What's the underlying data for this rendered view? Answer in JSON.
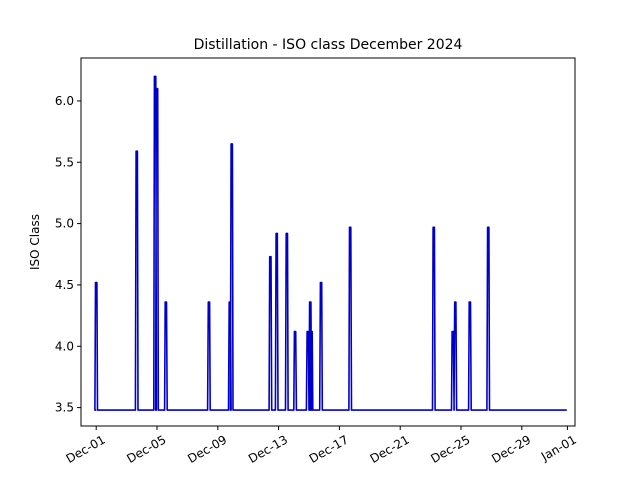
{
  "chart_data": {
    "type": "line",
    "title": "Distillation - ISO class December 2024",
    "xlabel": "",
    "ylabel": "ISO Class",
    "xlim": [
      "2024-11-30T00:00",
      "2025-01-01T12:00"
    ],
    "ylim": [
      3.35,
      6.35
    ],
    "grid": false,
    "x_ticks": [
      {
        "date": "2024-12-01",
        "label": "Dec-01"
      },
      {
        "date": "2024-12-05",
        "label": "Dec-05"
      },
      {
        "date": "2024-12-09",
        "label": "Dec-09"
      },
      {
        "date": "2024-12-13",
        "label": "Dec-13"
      },
      {
        "date": "2024-12-17",
        "label": "Dec-17"
      },
      {
        "date": "2024-12-21",
        "label": "Dec-21"
      },
      {
        "date": "2024-12-25",
        "label": "Dec-25"
      },
      {
        "date": "2024-12-29",
        "label": "Dec-29"
      },
      {
        "date": "2025-01-01",
        "label": "Jan-01"
      }
    ],
    "y_ticks": [
      {
        "value": 3.5,
        "label": "3.5"
      },
      {
        "value": 4.0,
        "label": "4.0"
      },
      {
        "value": 4.5,
        "label": "4.5"
      },
      {
        "value": 5.0,
        "label": "5.0"
      },
      {
        "value": 5.5,
        "label": "5.5"
      },
      {
        "value": 6.0,
        "label": "6.0"
      }
    ],
    "baseline": 3.48,
    "series": [
      {
        "color": "#0000cc",
        "spikes": [
          {
            "x": "2024-12-01T00:00",
            "y": 4.52
          },
          {
            "x": "2024-12-03T16:00",
            "y": 5.59
          },
          {
            "x": "2024-12-04T21:00",
            "y": 6.2
          },
          {
            "x": "2024-12-05T00:00",
            "y": 6.1
          },
          {
            "x": "2024-12-05T14:00",
            "y": 4.36
          },
          {
            "x": "2024-12-08T10:00",
            "y": 4.36
          },
          {
            "x": "2024-12-09T19:00",
            "y": 4.36
          },
          {
            "x": "2024-12-09T22:00",
            "y": 5.65
          },
          {
            "x": "2024-12-12T11:00",
            "y": 4.73
          },
          {
            "x": "2024-12-12T21:00",
            "y": 4.92
          },
          {
            "x": "2024-12-13T13:00",
            "y": 4.92
          },
          {
            "x": "2024-12-14T02:00",
            "y": 4.12
          },
          {
            "x": "2024-12-14T22:00",
            "y": 4.12
          },
          {
            "x": "2024-12-15T02:00",
            "y": 4.36
          },
          {
            "x": "2024-12-15T04:00",
            "y": 4.12
          },
          {
            "x": "2024-12-15T19:00",
            "y": 4.52
          },
          {
            "x": "2024-12-17T17:00",
            "y": 4.97
          },
          {
            "x": "2024-12-23T05:00",
            "y": 4.97
          },
          {
            "x": "2024-12-24T11:00",
            "y": 4.12
          },
          {
            "x": "2024-12-24T15:00",
            "y": 4.36
          },
          {
            "x": "2024-12-25T14:00",
            "y": 4.36
          },
          {
            "x": "2024-12-26T19:00",
            "y": 4.97
          }
        ],
        "end": "2024-12-31T23:00"
      }
    ]
  }
}
